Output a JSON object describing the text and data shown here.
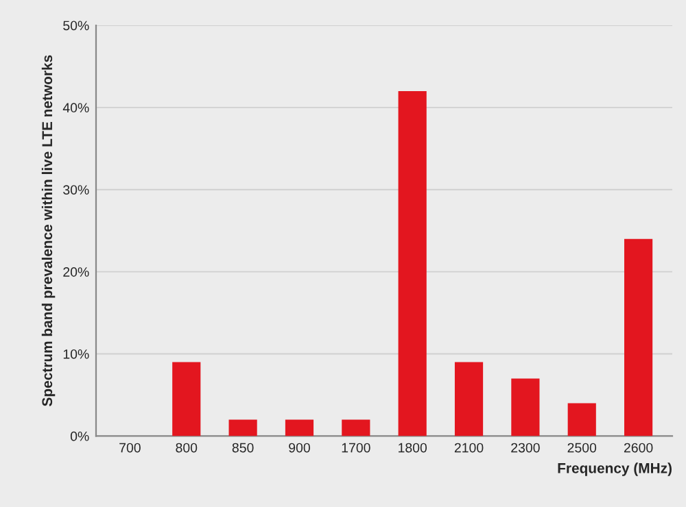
{
  "chart_data": {
    "type": "bar",
    "xlabel": "Frequency (MHz)",
    "ylabel": "Spectrum band prevalence within live LTE networks",
    "categories": [
      "700",
      "800",
      "850",
      "900",
      "1700",
      "1800",
      "2100",
      "2300",
      "2500",
      "2600"
    ],
    "values": [
      0,
      9,
      2,
      2,
      2,
      42,
      9,
      7,
      4,
      24
    ],
    "color": "#e3161f",
    "ylim": [
      0,
      50
    ],
    "yticks": [
      {
        "value": 0,
        "label": "0%"
      },
      {
        "value": 10,
        "label": "10%"
      },
      {
        "value": 20,
        "label": "20%"
      },
      {
        "value": 30,
        "label": "30%"
      },
      {
        "value": 40,
        "label": "40%"
      },
      {
        "value": 50,
        "label": "50%"
      }
    ],
    "grid": "y"
  }
}
